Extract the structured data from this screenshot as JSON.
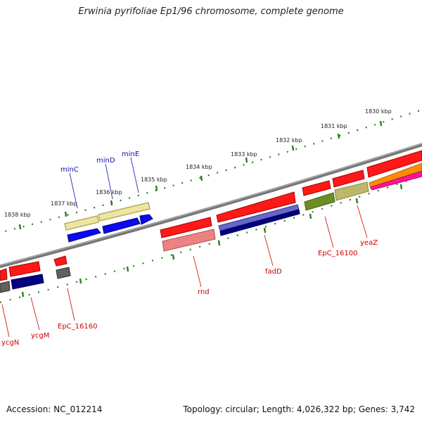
{
  "title": "Erwinia pyrifoliae Ep1/96 chromosome, complete genome",
  "footer": {
    "accession": "Accession: NC_012214",
    "stats": "Topology: circular; Length: 4,026,322 bp; Genes: 3,742"
  },
  "scale_labels": [
    "1830 kbp",
    "1831 kbp",
    "1832 kbp",
    "1833 kbp",
    "1834 kbp",
    "1835 kbp",
    "1836 kbp",
    "1837 kbp",
    "1838 kbp"
  ],
  "gene_labels": [
    "minC",
    "minD",
    "minE",
    "rnd",
    "fadD",
    "EpC_16100",
    "yeaZ",
    "ycgN",
    "ycgM",
    "EpC_16160"
  ],
  "colors": {
    "backbone": "#808080",
    "tick": "#2e7d1e",
    "label_blue": "#1010b0",
    "label_red": "#cc0000"
  }
}
